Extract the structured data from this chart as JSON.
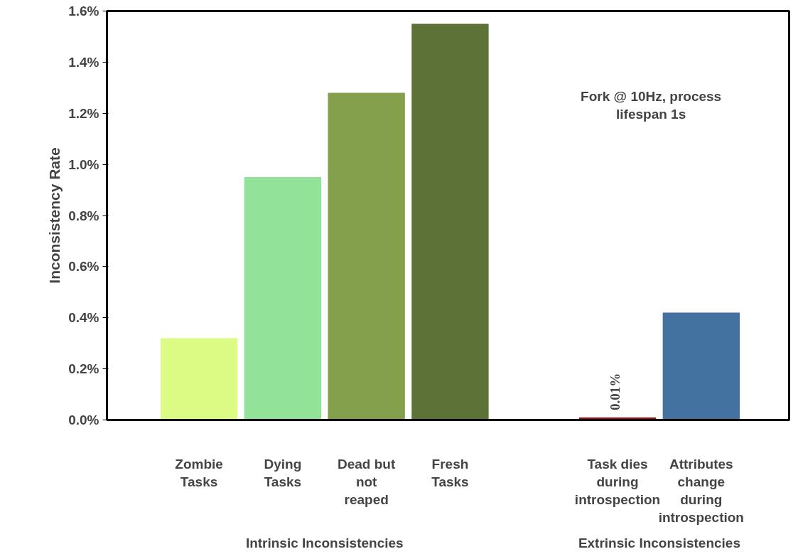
{
  "chart_data": {
    "type": "bar",
    "ylabel": "Inconsistency Rate",
    "categories": [
      "Zombie Tasks",
      "Dying Tasks",
      "Dead but not reaped",
      "Fresh Tasks",
      null,
      "Task dies during introspection",
      "Attributes change during introspection"
    ],
    "values": [
      0.32,
      0.95,
      1.28,
      1.55,
      null,
      0.01,
      0.42
    ],
    "colors": [
      "#dcfb84",
      "#92e29a",
      "#84a04c",
      "#5c7236",
      "#000000",
      "#a01010",
      "#4472a0"
    ],
    "value_labels": [
      null,
      null,
      null,
      null,
      null,
      "0.01%",
      null
    ],
    "ylim": [
      0,
      1.6
    ],
    "yticks": [
      {
        "value": 0,
        "label": "0.0%"
      },
      {
        "value": 0.2,
        "label": "0.2%"
      },
      {
        "value": 0.4,
        "label": "0.4%"
      },
      {
        "value": 0.6,
        "label": "0.6%"
      },
      {
        "value": 0.8,
        "label": "0.8%"
      },
      {
        "value": 1.0,
        "label": "1.0%"
      },
      {
        "value": 1.2,
        "label": "1.2%"
      },
      {
        "value": 1.4,
        "label": "1.4%"
      },
      {
        "value": 1.6,
        "label": "1.6%"
      }
    ],
    "grid": false,
    "annotations": [
      "Fork @ 10Hz, process lifespan 1s",
      "Intrinsic Inconsistencies",
      "Extrinsic Inconsistencies"
    ]
  }
}
